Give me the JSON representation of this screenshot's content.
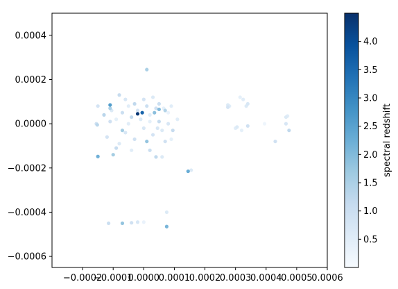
{
  "chart_data": {
    "type": "scatter",
    "title": "",
    "xlabel": "",
    "ylabel": "",
    "xlim": [
      -0.0003,
      0.0006
    ],
    "ylim": [
      -0.00065,
      0.0005
    ],
    "xticks": [
      -0.0002,
      -0.0001,
      0.0,
      0.0001,
      0.0002,
      0.0003,
      0.0004,
      0.0005,
      0.0006
    ],
    "xtick_labels": [
      "−0.0002",
      "−0.0001",
      "0.0000",
      "0.0001",
      "0.0002",
      "0.0003",
      "0.0004",
      "0.0005",
      "0.0006"
    ],
    "yticks": [
      0.0004,
      0.0002,
      0.0,
      -0.0002,
      -0.0004,
      -0.0006
    ],
    "ytick_labels": [
      "0.0004",
      "0.0002",
      "0.0000",
      "−0.0002",
      "−0.0004",
      "−0.0006"
    ],
    "grid": false,
    "colormap": "Blues",
    "colorbar": {
      "label": "spectral redshift",
      "range": [
        0.0,
        4.5
      ],
      "ticks": [
        0.5,
        1.0,
        1.5,
        2.0,
        2.5,
        3.0,
        3.5,
        4.0
      ],
      "tick_labels": [
        "0.5",
        "1.0",
        "1.5",
        "2.0",
        "2.5",
        "3.0",
        "3.5",
        "4.0"
      ],
      "top_color": "#08306b",
      "bottom_color": "#f7fbff"
    },
    "points": [
      [
        -0.00015,
        8e-05,
        0.8
      ],
      [
        -0.000155,
        0.0,
        0.9
      ],
      [
        -0.000152,
        -5e-06,
        1.3
      ],
      [
        -0.00015,
        -0.000148,
        2.2
      ],
      [
        -0.00011,
        8.5e-05,
        2.6
      ],
      [
        -0.000105,
        6e-05,
        0.6
      ],
      [
        -0.0001,
        -0.00014,
        1.6
      ],
      [
        -8e-05,
        0.00013,
        1.1
      ],
      [
        -9e-05,
        2e-05,
        0.4
      ],
      [
        -7e-05,
        5e-05,
        1.0
      ],
      [
        -6e-05,
        -4e-05,
        0.7
      ],
      [
        -5e-05,
        8e-05,
        0.5
      ],
      [
        -4e-05,
        3e-05,
        1.2
      ],
      [
        -3e-05,
        -7e-05,
        0.9
      ],
      [
        -2e-05,
        6e-05,
        0.8
      ],
      [
        -1e-05,
        2e-05,
        0.6
      ],
      [
        -2e-05,
        4.5e-05,
        4.4
      ],
      [
        -5e-06,
        5e-05,
        3.6
      ],
      [
        0.0,
        -2e-05,
        0.7
      ],
      [
        1e-05,
        8e-05,
        1.0
      ],
      [
        2e-05,
        4e-05,
        0.5
      ],
      [
        3e-05,
        -5e-05,
        0.8
      ],
      [
        4e-05,
        7e-05,
        0.9
      ],
      [
        5e-05,
        1e-05,
        1.1
      ],
      [
        6e-05,
        -3e-05,
        0.6
      ],
      [
        7e-05,
        6e-05,
        1.4
      ],
      [
        8e-05,
        0.0,
        0.7
      ],
      [
        9e-05,
        8e-05,
        0.5
      ],
      [
        6.5e-05,
        7e-05,
        0.4
      ],
      [
        5e-05,
        9e-05,
        1.0
      ],
      [
        1e-05,
        0.000245,
        1.5
      ],
      [
        4e-05,
        -0.00015,
        1.2
      ],
      [
        6e-05,
        -0.00015,
        0.6
      ],
      [
        0.00011,
        2e-05,
        0.5
      ],
      [
        9.5e-05,
        -3e-05,
        1.1
      ],
      [
        -0.00012,
        -6e-05,
        0.8
      ],
      [
        -0.00013,
        4e-05,
        1.3
      ],
      [
        -0.00011,
        1e-05,
        0.9
      ],
      [
        -8e-05,
        -9e-05,
        0.6
      ],
      [
        -6e-05,
        0.00011,
        0.7
      ],
      [
        -4e-05,
        -0.00012,
        0.5
      ],
      [
        0.0,
        0.00011,
        0.8
      ],
      [
        2e-05,
        -0.00012,
        1.0
      ],
      [
        3e-05,
        0.00012,
        0.6
      ],
      [
        -7e-05,
        -3e-05,
        1.6
      ],
      [
        1e-05,
        -8e-05,
        1.8
      ],
      [
        5e-05,
        6.5e-05,
        2.0
      ],
      [
        7e-05,
        -8e-05,
        0.9
      ],
      [
        -0.00011,
        7e-05,
        1.5
      ],
      [
        -9e-05,
        -0.00011,
        1.1
      ],
      [
        8e-05,
        5e-05,
        0.3
      ],
      [
        2e-05,
        1e-05,
        0.4
      ],
      [
        -3e-05,
        9e-05,
        1.2
      ],
      [
        -5e-05,
        0.0,
        0.5
      ],
      [
        4.5e-05,
        -2e-05,
        0.7
      ],
      [
        9e-05,
        -7e-05,
        0.4
      ],
      [
        3.5e-05,
        5e-05,
        1.9
      ],
      [
        0.000145,
        -0.000215,
        2.3
      ],
      [
        0.000155,
        -0.00021,
        0.6
      ],
      [
        0.000275,
        8.5e-05,
        0.6
      ],
      [
        0.00028,
        8e-05,
        0.5
      ],
      [
        0.000275,
        7.5e-05,
        0.8
      ],
      [
        0.000315,
        0.00012,
        0.4
      ],
      [
        0.000325,
        0.00011,
        0.5
      ],
      [
        0.000335,
        8e-05,
        0.6
      ],
      [
        0.00034,
        9e-05,
        0.7
      ],
      [
        0.00034,
        -1e-05,
        0.9
      ],
      [
        0.0003,
        -2e-05,
        0.5
      ],
      [
        0.00032,
        -3e-05,
        0.4
      ],
      [
        0.000305,
        -1.5e-05,
        0.6
      ],
      [
        0.000395,
        0.0,
        0.2
      ],
      [
        0.00043,
        -8e-05,
        0.9
      ],
      [
        0.000465,
        3e-05,
        0.6
      ],
      [
        0.000465,
        0.0,
        0.7
      ],
      [
        0.000475,
        -3e-05,
        1.2
      ],
      [
        0.00047,
        3.5e-05,
        0.5
      ],
      [
        -0.000115,
        -0.00045,
        1.0
      ],
      [
        -7e-05,
        -0.00045,
        1.8
      ],
      [
        -4e-05,
        -0.000448,
        0.9
      ],
      [
        -2e-05,
        -0.000445,
        0.7
      ],
      [
        0.0,
        -0.000445,
        0.3
      ],
      [
        7.5e-05,
        -0.000465,
        2.1
      ],
      [
        7.5e-05,
        -0.0004,
        0.6
      ]
    ]
  }
}
